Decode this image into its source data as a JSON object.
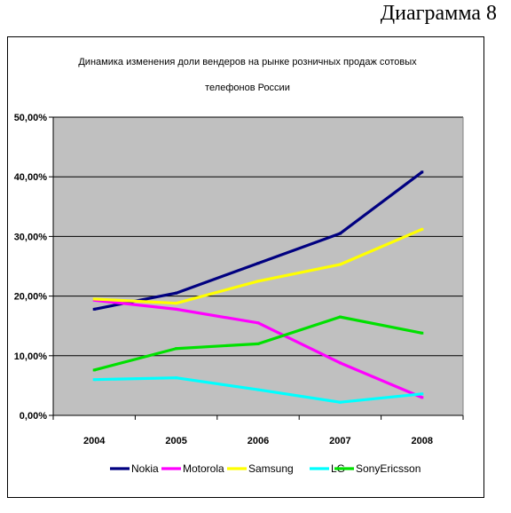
{
  "page": {
    "caption": "Диаграмма 8"
  },
  "chart_data": {
    "type": "line",
    "title_lines": [
      "Динамика изменения доли вендеров на рынке розничных продаж сотовых",
      "телефонов России"
    ],
    "categories": [
      "2004",
      "2005",
      "2006",
      "2007",
      "2008"
    ],
    "ylim": [
      0,
      0.5
    ],
    "yticks": [
      0,
      0.1,
      0.2,
      0.3,
      0.4,
      0.5
    ],
    "ytick_labels": [
      "0,00%",
      "10,00%",
      "20,00%",
      "30,00%",
      "40,00%",
      "50,00%"
    ],
    "grid": true,
    "legend_position": "bottom",
    "plot_background": "#c0c0c0",
    "series": [
      {
        "name": "Nokia",
        "color": "#000080",
        "values": [
          0.178,
          0.205,
          0.255,
          0.305,
          0.408
        ]
      },
      {
        "name": "Motorola",
        "color": "#ff00ff",
        "values": [
          0.193,
          0.178,
          0.155,
          0.088,
          0.03
        ]
      },
      {
        "name": "Samsung",
        "color": "#ffff00",
        "values": [
          0.195,
          0.188,
          0.225,
          0.253,
          0.312
        ]
      },
      {
        "name": "LG",
        "color": "#00ffff",
        "values": [
          0.06,
          0.063,
          0.043,
          0.022,
          0.036
        ]
      },
      {
        "name": "SonyEricsson",
        "color": "#00e000",
        "values": [
          0.076,
          0.112,
          0.12,
          0.165,
          0.138
        ]
      }
    ]
  }
}
